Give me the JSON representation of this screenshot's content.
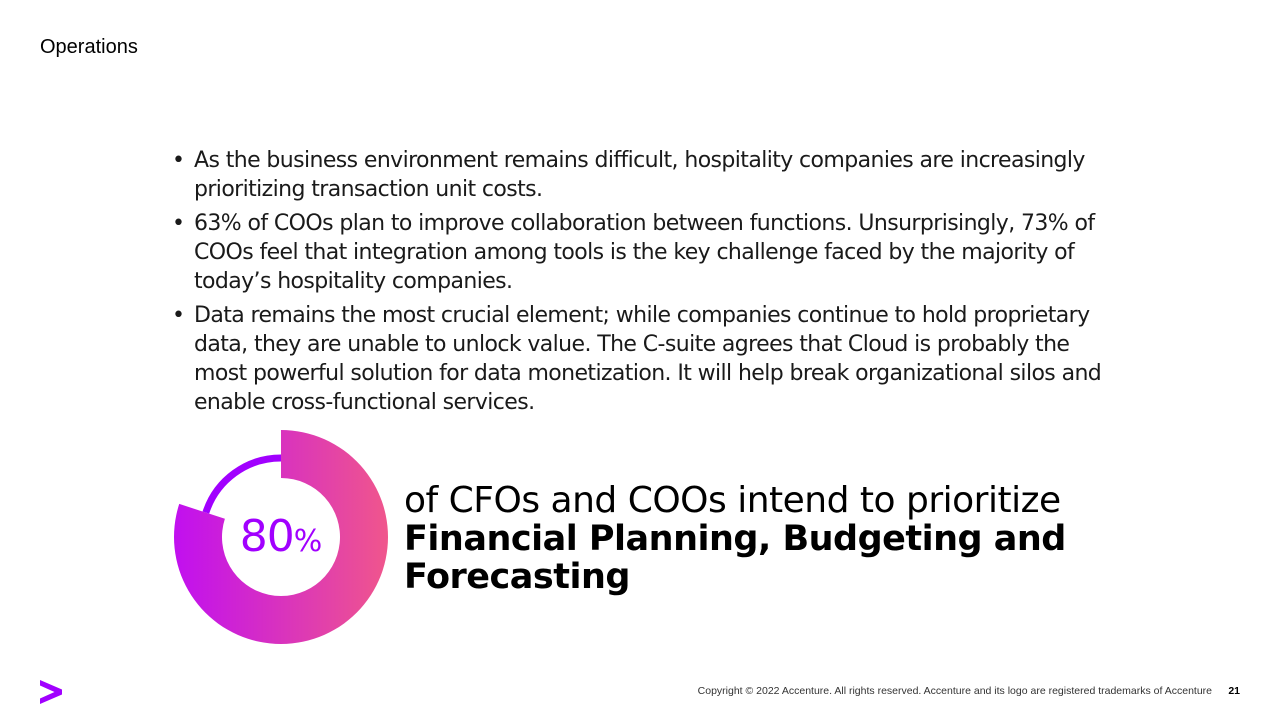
{
  "slide": {
    "title": "Operations"
  },
  "bullets": [
    "As the business environment remains difficult, hospitality companies are increasingly prioritizing transaction unit costs.",
    "63% of COOs plan to improve collaboration between functions. Unsurprisingly, 73% of COOs feel that integration among tools is the key challenge faced by the majority of today’s hospitality companies.",
    "Data remains the most crucial element; while companies continue to hold proprietary data, they are unable to unlock value. The C-suite agrees that Cloud is probably the most powerful solution for data monetization. It will help break organizational silos and enable cross-functional services."
  ],
  "bullet_symbol": "•",
  "stat": {
    "value": "80",
    "unit": "%",
    "fraction": 0.8,
    "text_regular": "of CFOs and COOs intend to prioritize",
    "text_bold": "Financial Planning, Budgeting and Forecasting"
  },
  "footer": {
    "copyright": "Copyright © 2022 Accenture. All rights reserved. Accenture and its logo are registered trademarks of Accenture",
    "page_number": "21"
  },
  "colors": {
    "brand_purple": "#a100ff",
    "gradient_start": "#c10ff0",
    "gradient_end": "#f0568c"
  },
  "icons": {
    "logo": "accenture-greater-than-logo"
  }
}
